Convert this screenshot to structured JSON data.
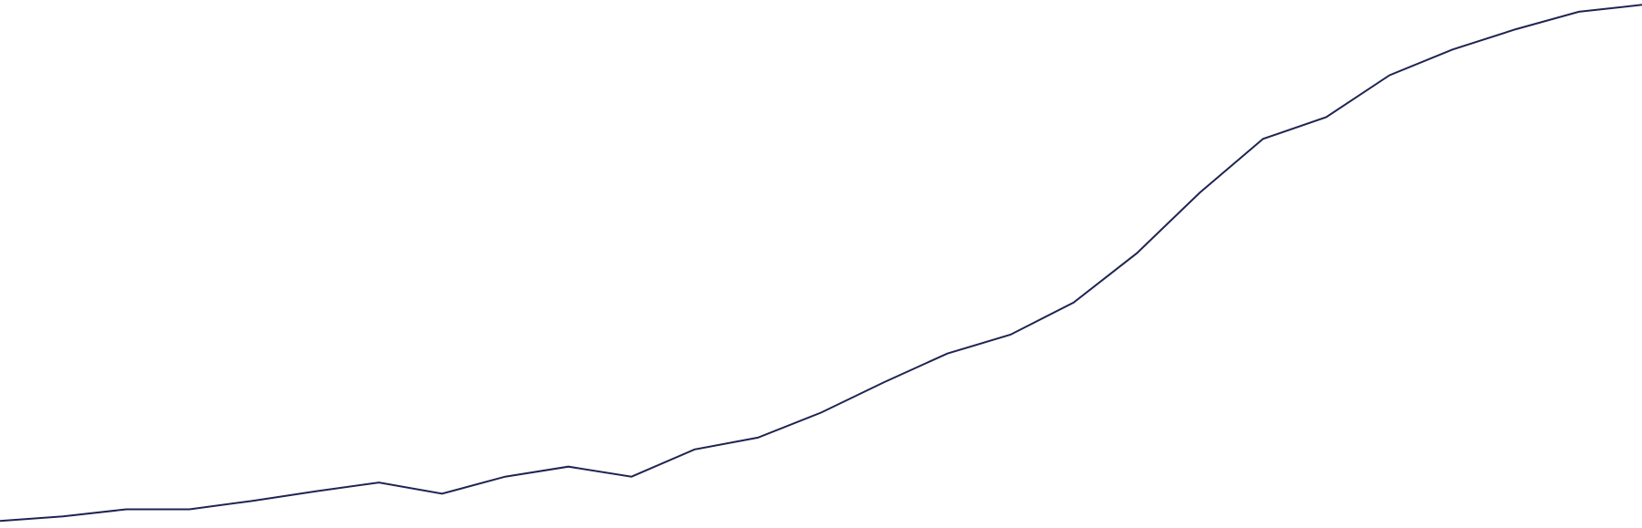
{
  "chart_data": {
    "type": "line",
    "title": "",
    "xlabel": "",
    "ylabel": "",
    "grid": false,
    "legend": "none",
    "x": [
      0,
      1,
      2,
      3,
      4,
      5,
      6,
      7,
      8,
      9,
      10,
      11,
      12,
      13,
      14,
      15,
      16,
      17,
      18,
      19,
      20,
      21,
      22,
      23,
      24,
      25,
      26
    ],
    "series": [
      {
        "color": "#1f2451",
        "values": [
          3.5,
          5.7,
          9.2,
          9.2,
          13.4,
          18.1,
          22.4,
          16.9,
          25.3,
          30.2,
          25.3,
          38.7,
          44.5,
          56.8,
          71.8,
          85.9,
          95.2,
          111.0,
          135.3,
          165.2,
          191.6,
          202.3,
          222.9,
          235.6,
          245.6,
          254.2,
          257.6
        ]
      }
    ],
    "xlim": [
      0,
      26
    ],
    "ylim": [
      0,
      260
    ]
  }
}
